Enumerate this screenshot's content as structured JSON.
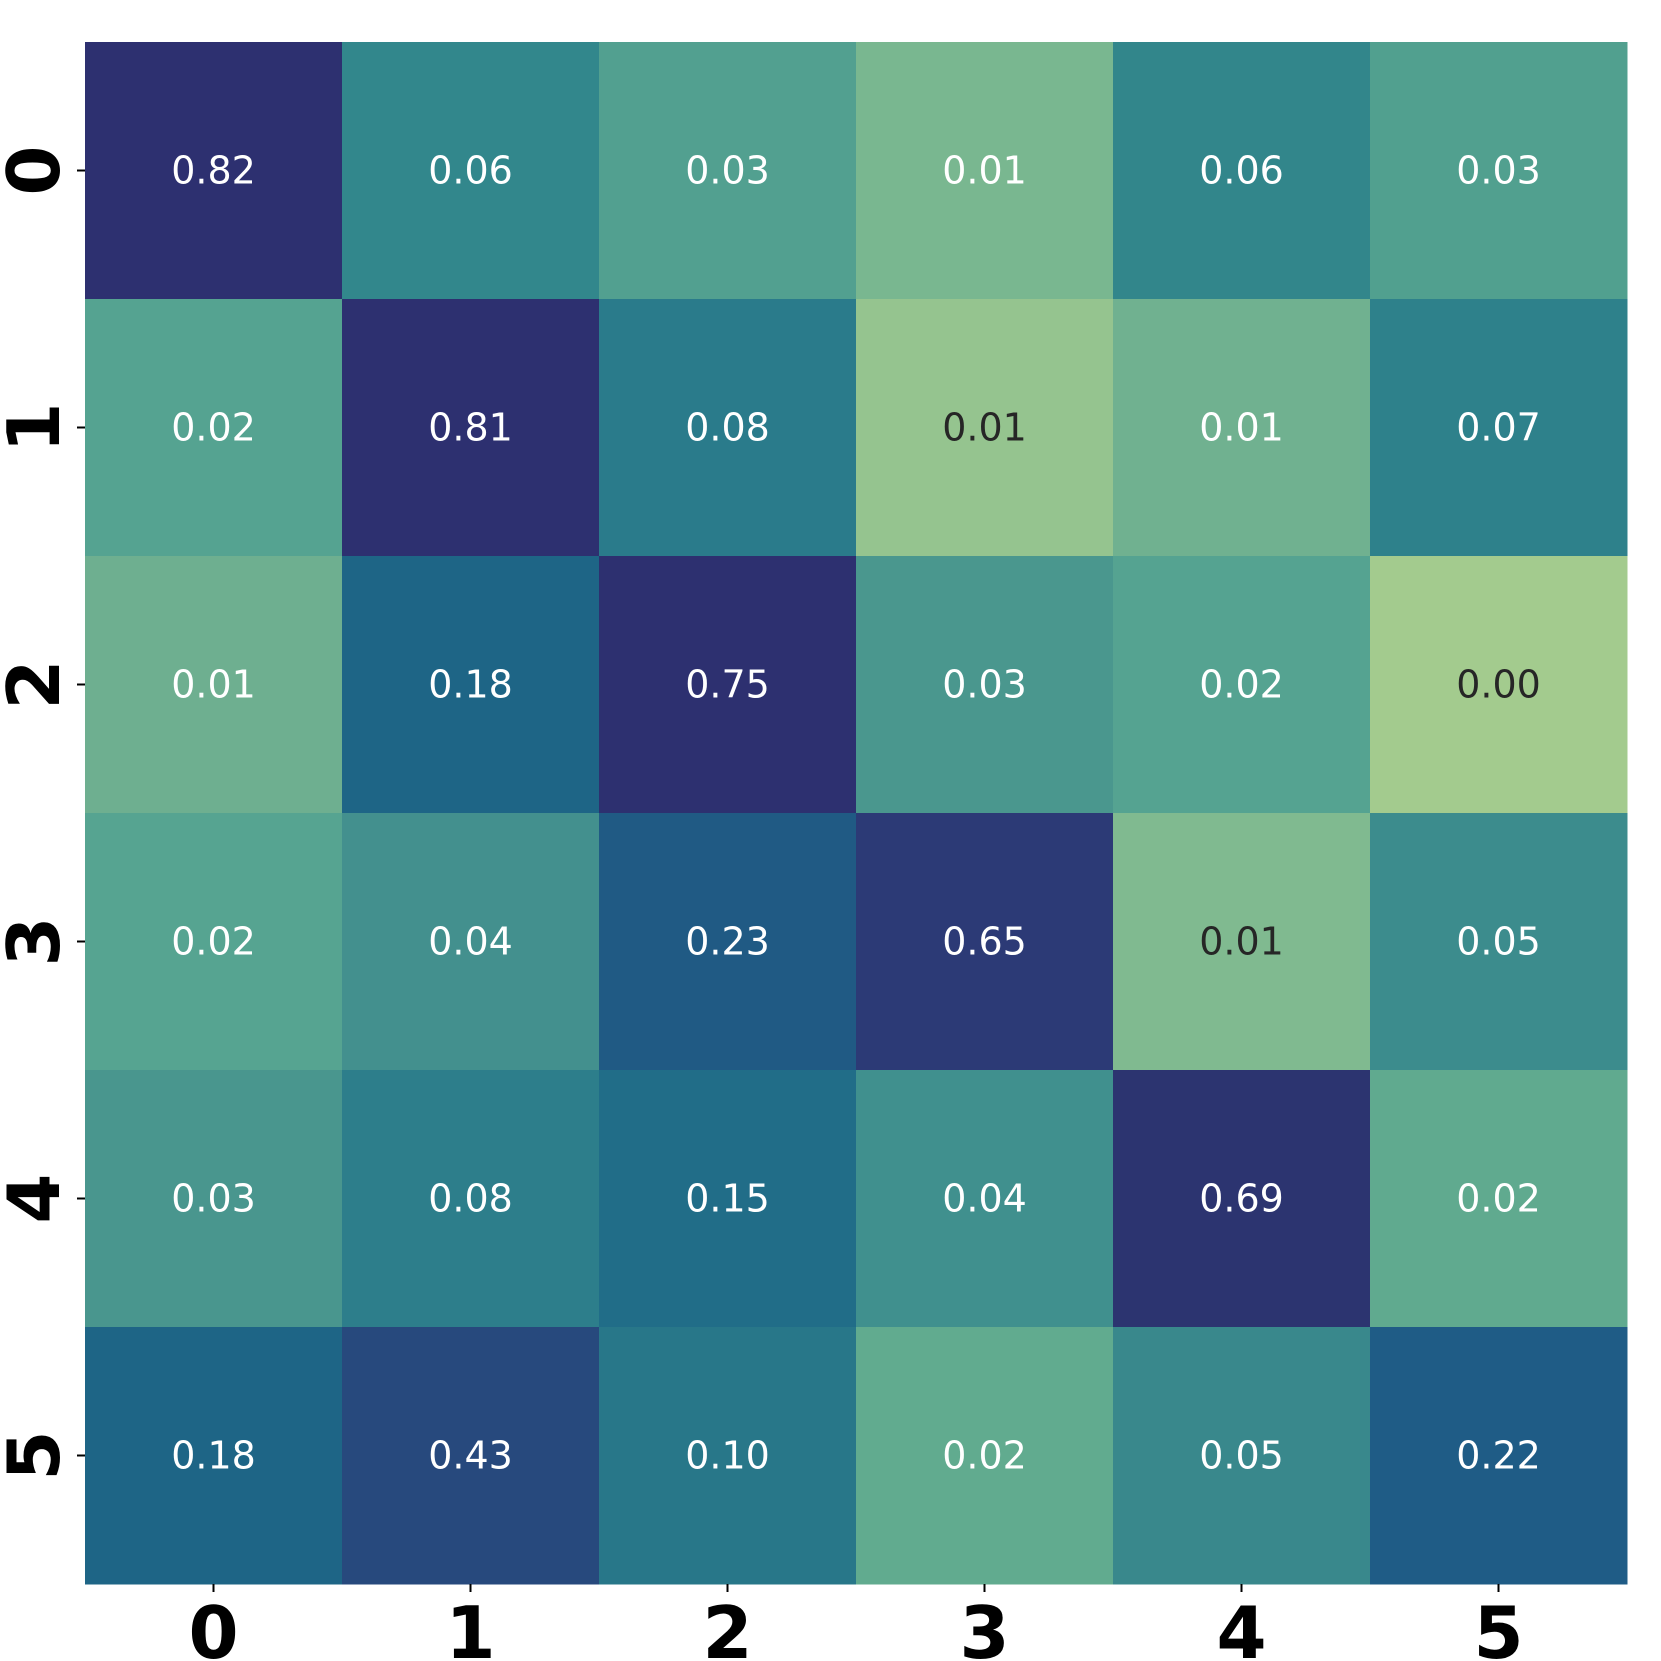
{
  "chart_data": {
    "type": "heatmap",
    "title": "",
    "xlabel": "",
    "ylabel": "",
    "x_ticks": [
      "0",
      "1",
      "2",
      "3",
      "4",
      "5"
    ],
    "y_ticks": [
      "0",
      "1",
      "2",
      "3",
      "4",
      "5"
    ],
    "values": [
      [
        0.82,
        0.06,
        0.03,
        0.01,
        0.06,
        0.03
      ],
      [
        0.02,
        0.81,
        0.08,
        0.01,
        0.01,
        0.07
      ],
      [
        0.01,
        0.18,
        0.75,
        0.03,
        0.02,
        0.0
      ],
      [
        0.02,
        0.04,
        0.23,
        0.65,
        0.01,
        0.05
      ],
      [
        0.03,
        0.08,
        0.15,
        0.04,
        0.69,
        0.02
      ],
      [
        0.18,
        0.43,
        0.1,
        0.02,
        0.05,
        0.22
      ]
    ],
    "labels": [
      [
        "0.82",
        "0.06",
        "0.03",
        "0.01",
        "0.06",
        "0.03"
      ],
      [
        "0.02",
        "0.81",
        "0.08",
        "0.01",
        "0.01",
        "0.07"
      ],
      [
        "0.01",
        "0.18",
        "0.75",
        "0.03",
        "0.02",
        "0.00"
      ],
      [
        "0.02",
        "0.04",
        "0.23",
        "0.65",
        "0.01",
        "0.05"
      ],
      [
        "0.03",
        "0.08",
        "0.15",
        "0.04",
        "0.69",
        "0.02"
      ],
      [
        "0.18",
        "0.43",
        "0.10",
        "0.02",
        "0.05",
        "0.22"
      ]
    ],
    "cell_colors": [
      [
        "#2d3070",
        "#32878c",
        "#52a090",
        "#79b790",
        "#32868b",
        "#51a08f"
      ],
      [
        "#55a391",
        "#2d3070",
        "#2a7b8b",
        "#95c48f",
        "#70b190",
        "#2e818b"
      ],
      [
        "#6eaf90",
        "#1e6586",
        "#2d3070",
        "#4a978e",
        "#55a391",
        "#a3cb8e"
      ],
      [
        "#56a491",
        "#43908e",
        "#205a84",
        "#2c3a76",
        "#80ba90",
        "#3c8c8d"
      ],
      [
        "#49968e",
        "#2d7e8b",
        "#216d88",
        "#40908e",
        "#2c3470",
        "#60aa8f"
      ],
      [
        "#1e6586",
        "#27497d",
        "#287789",
        "#61ab8f",
        "#39888c",
        "#1f5c86"
      ]
    ],
    "label_colors": [
      [
        "#ffffff",
        "#ffffff",
        "#ffffff",
        "#ffffff",
        "#ffffff",
        "#ffffff"
      ],
      [
        "#ffffff",
        "#ffffff",
        "#ffffff",
        "#262626",
        "#ffffff",
        "#ffffff"
      ],
      [
        "#ffffff",
        "#ffffff",
        "#ffffff",
        "#ffffff",
        "#ffffff",
        "#262626"
      ],
      [
        "#ffffff",
        "#ffffff",
        "#ffffff",
        "#ffffff",
        "#262626",
        "#ffffff"
      ],
      [
        "#ffffff",
        "#ffffff",
        "#ffffff",
        "#ffffff",
        "#ffffff",
        "#ffffff"
      ],
      [
        "#ffffff",
        "#ffffff",
        "#ffffff",
        "#ffffff",
        "#ffffff",
        "#ffffff"
      ]
    ],
    "colorbar": false,
    "grid": false
  }
}
